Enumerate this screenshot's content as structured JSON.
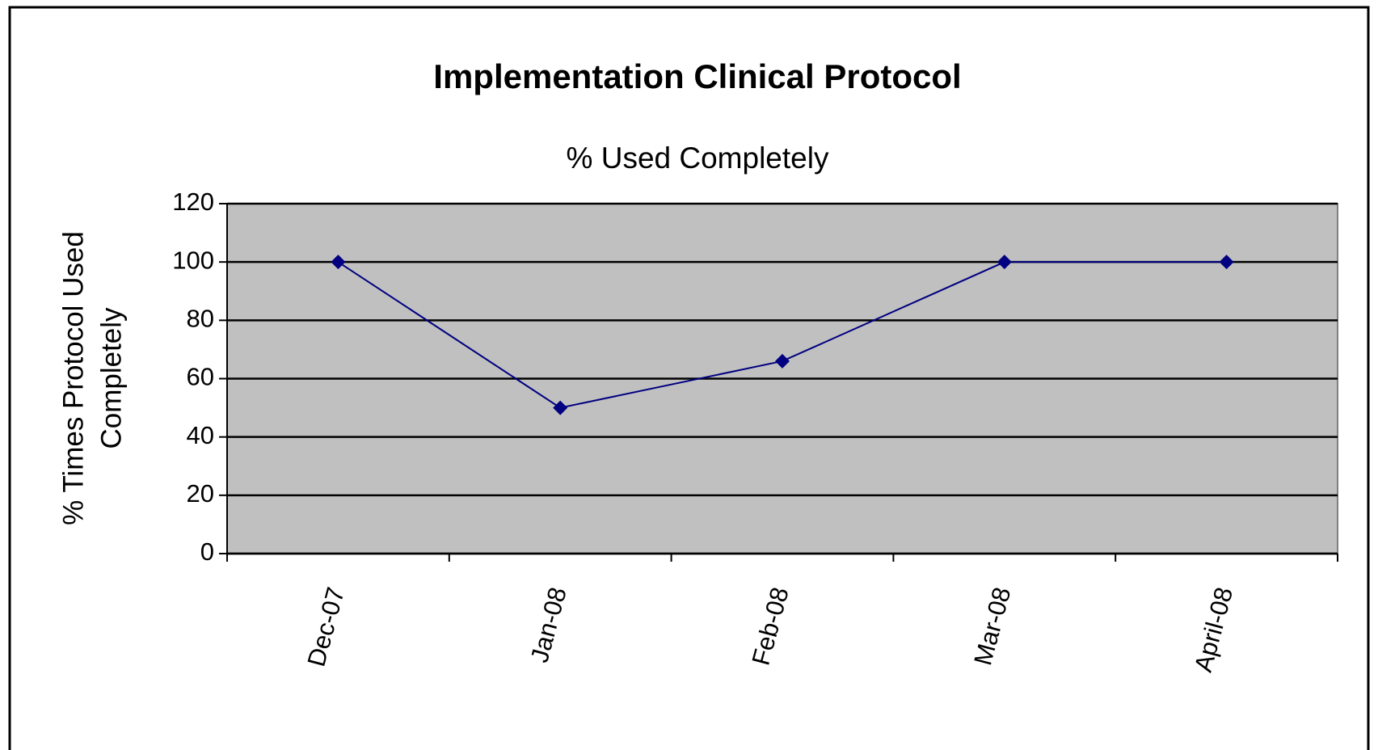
{
  "chart_data": {
    "type": "line",
    "title": "Implementation Clinical Protocol",
    "subtitle": "% Used Completely",
    "y_label": [
      "% Times Protocol Used",
      "Completely"
    ],
    "categories": [
      "Dec-07",
      "Jan-08",
      "Feb-08",
      "Mar-08",
      "April-08"
    ],
    "values": [
      100,
      50,
      66,
      100,
      100
    ],
    "color": "#000080",
    "ylim": [
      0,
      120
    ],
    "yticks": [
      0,
      20,
      40,
      60,
      80,
      100,
      120
    ],
    "grid": true
  }
}
